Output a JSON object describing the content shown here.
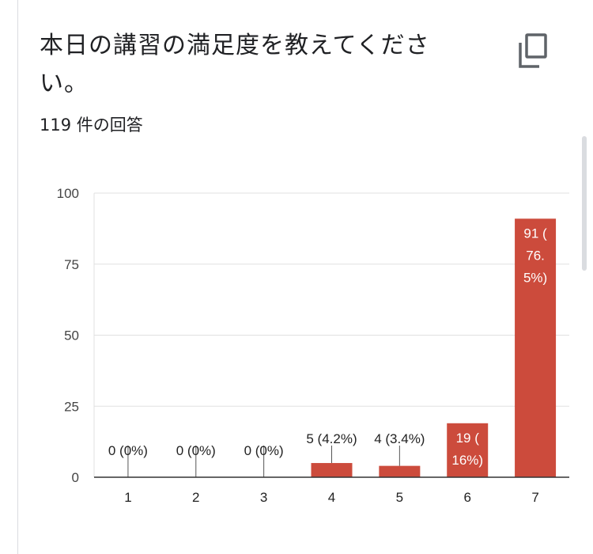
{
  "question": {
    "title": "本日の講習の満足度を教えてください。",
    "response_count": "119 件の回答"
  },
  "icons": {
    "copy": "copy-icon"
  },
  "colors": {
    "bar": "#cc4b3c",
    "grid": "#e0e0e0",
    "axis": "#333333"
  },
  "chart_data": {
    "type": "bar",
    "categories": [
      "1",
      "2",
      "3",
      "4",
      "5",
      "6",
      "7"
    ],
    "values": [
      0,
      0,
      0,
      5,
      4,
      19,
      91
    ],
    "data_labels": [
      [
        "0 (0%)"
      ],
      [
        "0 (0%)"
      ],
      [
        "0 (0%)"
      ],
      [
        "5 (4.2%)"
      ],
      [
        "4 (3.4%)"
      ],
      [
        "19 (",
        "16%)"
      ],
      [
        "91 (",
        "76.",
        "5%)"
      ]
    ],
    "ylim": [
      0,
      100
    ],
    "yticks": [
      "0",
      "25",
      "50",
      "75",
      "100"
    ],
    "grid": true,
    "xlabel": "",
    "ylabel": ""
  }
}
